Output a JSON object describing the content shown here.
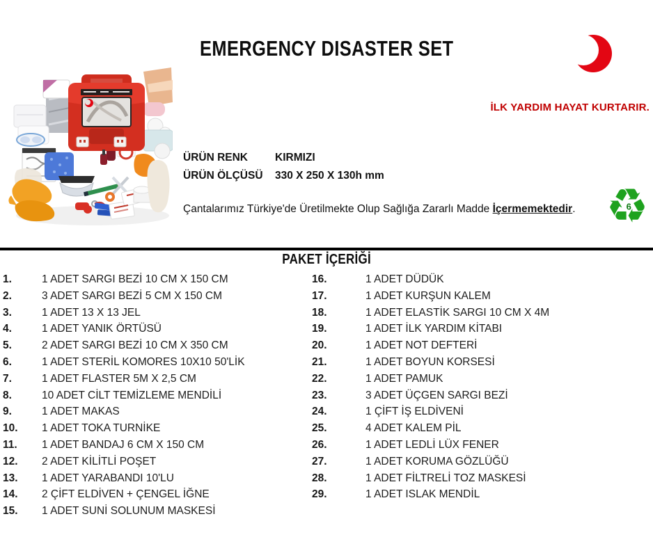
{
  "header": {
    "title": "EMERGENCY DISASTER SET",
    "slogan": "İLK YARDIM HAYAT KURTARIR."
  },
  "product": {
    "attributes": [
      {
        "label": "ÜRÜN RENK",
        "value": "KIRMIZI"
      },
      {
        "label": "ÜRÜN ÖLÇÜSÜ",
        "value": "330 X 250 X 130h mm"
      }
    ],
    "note": {
      "prefix": "Çantalarımız Türkiye'de Üretilmekte Olup Sağlığa Zararlı Madde ",
      "emphasis": "İçermemektedir",
      "suffix": "."
    },
    "recycle": {
      "glyph": "♻",
      "number": "6"
    }
  },
  "contents": {
    "heading": "PAKET İÇERİĞİ",
    "items": [
      {
        "number": "1.",
        "text": "1 ADET SARGI BEZİ 10 CM X 150 CM"
      },
      {
        "number": "2.",
        "text": "3 ADET SARGI BEZİ 5 CM X 150 CM"
      },
      {
        "number": "3.",
        "text": "1 ADET 13 X 13 JEL"
      },
      {
        "number": "4.",
        "text": "1 ADET YANIK ÖRTÜSÜ"
      },
      {
        "number": "5.",
        "text": "2 ADET SARGI BEZİ 10 CM X 350 CM"
      },
      {
        "number": "6.",
        "text": "1 ADET STERİL KOMORES 10X10 50'LİK"
      },
      {
        "number": "7.",
        "text": "1 ADET FLASTER 5M X 2,5 CM"
      },
      {
        "number": "8.",
        "text": "10 ADET CİLT TEMİZLEME MENDİLİ"
      },
      {
        "number": "9.",
        "text": "1 ADET MAKAS"
      },
      {
        "number": "10.",
        "text": "1 ADET TOKA TURNİKE"
      },
      {
        "number": "11.",
        "text": "1 ADET BANDAJ 6 CM X 150 CM"
      },
      {
        "number": "12.",
        "text": "2 ADET KİLİTLİ POŞET"
      },
      {
        "number": "13.",
        "text": "1 ADET YARABANDI 10'LU"
      },
      {
        "number": "14.",
        "text": "2 ÇİFT ELDİVEN + ÇENGEL İĞNE"
      },
      {
        "number": "15.",
        "text": "1 ADET SUNİ SOLUNUM MASKESİ"
      },
      {
        "number": "16.",
        "text": "1 ADET DÜDÜK"
      },
      {
        "number": "17.",
        "text": "1 ADET KURŞUN KALEM"
      },
      {
        "number": "18.",
        "text": "1 ADET ELASTİK SARGI 10 CM X 4M"
      },
      {
        "number": "19.",
        "text": "1 ADET İLK YARDIM KİTABI"
      },
      {
        "number": "20.",
        "text": "1 ADET NOT DEFTERİ"
      },
      {
        "number": "21.",
        "text": "1 ADET BOYUN KORSESİ"
      },
      {
        "number": "22.",
        "text": "1 ADET PAMUK"
      },
      {
        "number": "23.",
        "text": "3 ADET ÜÇGEN SARGI BEZİ"
      },
      {
        "number": "24.",
        "text": "1 ÇİFT İŞ ELDİVENİ"
      },
      {
        "number": "25.",
        "text": "4 ADET KALEM PİL"
      },
      {
        "number": "26.",
        "text": "1 ADET LEDLİ LÜX FENER"
      },
      {
        "number": "27.",
        "text": "1 ADET KORUMA GÖZLÜĞÜ"
      },
      {
        "number": "28.",
        "text": "1 ADET FİLTRELİ TOZ MASKESİ"
      },
      {
        "number": "29.",
        "text": "1 ADET ISLAK MENDİL"
      }
    ]
  },
  "colors": {
    "accent_red": "#c00000",
    "crescent_red": "#e30613",
    "recycle_green": "#1ea21e",
    "case_red": "#e43b2c",
    "text_dark": "#1f1f1f"
  }
}
